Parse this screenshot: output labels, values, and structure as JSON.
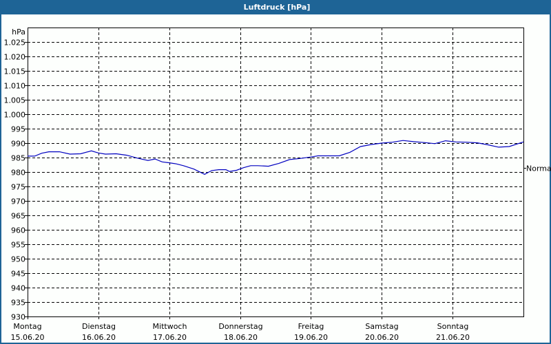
{
  "window": {
    "title": "Luftdruck [hPa]"
  },
  "colors": {
    "titlebar": "#1e6496",
    "line": "#0000c0",
    "grid": "#000000",
    "background": "#fdfffd"
  },
  "chart_data": {
    "type": "line",
    "title": "Luftdruck [hPa]",
    "ylabel": "hPa",
    "xlabel": "",
    "ylim": [
      930,
      1030
    ],
    "yticks": [
      930,
      935,
      940,
      945,
      950,
      955,
      960,
      965,
      970,
      975,
      980,
      985,
      990,
      995,
      1000,
      1005,
      1010,
      1015,
      1020,
      1025
    ],
    "ytick_labels": [
      "930",
      "935",
      "940",
      "945",
      "950",
      "955",
      "960",
      "965",
      "970",
      "975",
      "980",
      "985",
      "990",
      "995",
      "1.000",
      "1.005",
      "1.010",
      "1.015",
      "1.020",
      "1.025"
    ],
    "x_categories": [
      {
        "day": "Montag",
        "date": "15.06.20"
      },
      {
        "day": "Dienstag",
        "date": "16.06.20"
      },
      {
        "day": "Mittwoch",
        "date": "17.06.20"
      },
      {
        "day": "Donnerstag",
        "date": "18.06.20"
      },
      {
        "day": "Freitag",
        "date": "19.06.20"
      },
      {
        "day": "Samstag",
        "date": "20.06.20"
      },
      {
        "day": "Sonntag",
        "date": "21.06.20"
      }
    ],
    "right_marker": {
      "label": "Normal",
      "value": 981.5
    },
    "grid": true,
    "series": [
      {
        "name": "Luftdruck",
        "x_days": [
          0,
          0.1,
          0.2,
          0.3,
          0.45,
          0.6,
          0.75,
          0.9,
          1.0,
          1.1,
          1.25,
          1.4,
          1.55,
          1.7,
          1.8,
          1.9,
          2.0,
          2.1,
          2.2,
          2.35,
          2.5,
          2.6,
          2.7,
          2.8,
          2.85,
          2.95,
          3.05,
          3.15,
          3.25,
          3.4,
          3.55,
          3.7,
          3.85,
          4.0,
          4.1,
          4.25,
          4.4,
          4.55,
          4.7,
          4.85,
          5.0,
          5.15,
          5.3,
          5.45,
          5.6,
          5.75,
          5.9,
          6.05,
          6.2,
          6.35,
          6.5,
          6.65,
          6.8,
          7.0
        ],
        "values": [
          985.5,
          985.5,
          986.5,
          987,
          987,
          986.2,
          986.3,
          987.3,
          986.6,
          986.2,
          986.3,
          985.8,
          984.8,
          984,
          984.5,
          983.5,
          983.2,
          982.8,
          982.2,
          981,
          979.2,
          980.5,
          980.8,
          980.8,
          980.2,
          980.6,
          981.5,
          982.2,
          982.2,
          982,
          983,
          984.3,
          984.7,
          985.2,
          985.6,
          985.6,
          985.6,
          986.8,
          988.8,
          989.5,
          990,
          990.3,
          990.9,
          990.5,
          990.2,
          989.8,
          990.8,
          990.4,
          990.3,
          990.1,
          989.4,
          988.6,
          988.8,
          990.4
        ]
      }
    ]
  }
}
